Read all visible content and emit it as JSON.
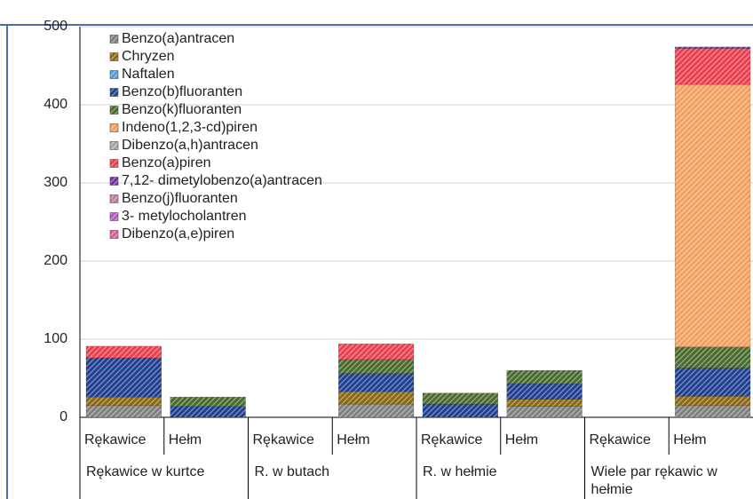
{
  "chart_data": {
    "type": "stacked-bar",
    "categories": [
      "Rękawice",
      "Hełm",
      "Rękawice",
      "Hełm",
      "Rękawice",
      "Hełm",
      "Rękawice",
      "Hełm"
    ],
    "group_labels": [
      "Rękawice w kurtce",
      "R. w butach",
      "R. w hełmie",
      "Wiele par rękawic w hełmie"
    ],
    "ylim": [
      0,
      500
    ],
    "yticks": [
      0,
      100,
      200,
      300,
      400,
      500
    ],
    "grid": true,
    "series": [
      {
        "name": "Benzo(a)antracen",
        "color": "#7f7f7f",
        "values": [
          15,
          0,
          0,
          17,
          0,
          14,
          0,
          15
        ]
      },
      {
        "name": "Chryzen",
        "color": "#8b6914",
        "values": [
          11,
          0,
          0,
          16,
          0,
          9,
          0,
          12
        ]
      },
      {
        "name": "Naftalen",
        "color": "#4f9fd8",
        "values": [
          0,
          0,
          0,
          0,
          0,
          0,
          0,
          0
        ]
      },
      {
        "name": "Benzo(b)fluoranten",
        "color": "#1f3f8f",
        "values": [
          50,
          14,
          0,
          23,
          17,
          20,
          0,
          36
        ]
      },
      {
        "name": "Benzo(k)fluoranten",
        "color": "#4a6b2e",
        "values": [
          0,
          12,
          0,
          18,
          14,
          17,
          0,
          27
        ]
      },
      {
        "name": "Indeno(1,2,3-cd)piren",
        "color": "#f0a060",
        "values": [
          0,
          0,
          0,
          0,
          0,
          0,
          0,
          336
        ]
      },
      {
        "name": "Dibenzo(a,h)antracen",
        "color": "#a6a6a6",
        "values": [
          0,
          0,
          0,
          0,
          0,
          0,
          0,
          0
        ]
      },
      {
        "name": "Benzo(a)piren",
        "color": "#e8404f",
        "values": [
          15,
          0,
          0,
          20,
          0,
          0,
          0,
          46
        ]
      },
      {
        "name": "7,12- dimetylobenzo(a)antracen",
        "color": "#7030a0",
        "values": [
          0,
          0,
          0,
          0,
          0,
          0,
          0,
          2
        ]
      },
      {
        "name": "Benzo(j)fluoranten",
        "color": "#c07aa8",
        "values": [
          0,
          0,
          0,
          0,
          0,
          0,
          0,
          0
        ]
      },
      {
        "name": "3- metylocholantren",
        "color": "#b05cc0",
        "values": [
          0,
          0,
          0,
          0,
          0,
          0,
          0,
          0
        ]
      },
      {
        "name": "Dibenzo(a,e)piren",
        "color": "#d0609a",
        "values": [
          0,
          0,
          0,
          0,
          0,
          0,
          0,
          0
        ]
      }
    ]
  }
}
